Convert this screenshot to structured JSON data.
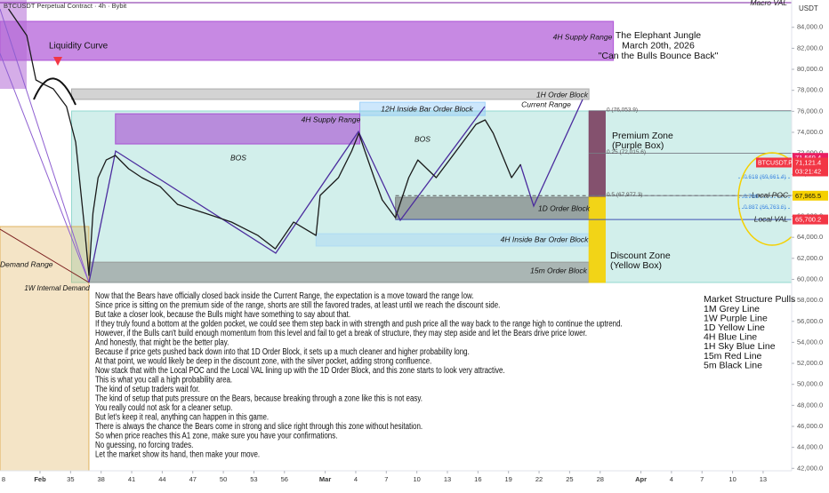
{
  "chart_data": {
    "type": "line",
    "title": "BTCUSDT Perpetual Contract · 4h · Bybit",
    "currency": "USDT",
    "color": "#1a1a1a",
    "x": [
      28.9,
      30.7,
      31.6,
      32.4,
      33.3,
      34.6,
      35.5,
      36.4,
      36.8,
      37.2,
      37.7,
      38.5,
      39.4,
      40.7,
      42.0,
      43.8,
      45.5,
      48.2,
      50.8,
      53.4,
      55.1,
      56.9,
      59.1,
      59.5,
      61.3,
      62.6,
      63.3,
      63.9,
      64.8,
      65.6,
      66.9,
      68.2,
      69.1,
      70.9,
      72.2,
      73.5,
      74.8,
      75.7,
      76.5,
      77.4,
      78.3,
      79.2
    ],
    "values": [
      85750,
      83220,
      78990,
      78560,
      78140,
      76450,
      73060,
      64600,
      60370,
      66300,
      69680,
      71370,
      71800,
      70530,
      69680,
      68830,
      67140,
      66300,
      65450,
      64180,
      62910,
      65450,
      64180,
      67990,
      69680,
      72220,
      73910,
      72220,
      69680,
      67570,
      65870,
      69680,
      71370,
      69680,
      71370,
      73060,
      74760,
      75180,
      73910,
      71800,
      69680,
      70950
    ],
    "xlim": [
      28.07,
      105.8
    ],
    "ylim": [
      41770,
      86600
    ],
    "xticks": [
      {
        "value": 28,
        "label": "8"
      },
      {
        "value": 32,
        "label": "Feb"
      },
      35,
      38,
      41,
      44,
      47,
      50,
      53,
      56,
      {
        "value": 60,
        "label": "Mar"
      },
      {
        "value": 63,
        "label": "4"
      },
      {
        "value": 66,
        "label": "7"
      },
      {
        "value": 69,
        "label": "10"
      },
      {
        "value": 72,
        "label": "13"
      },
      {
        "value": 75,
        "label": "16"
      },
      {
        "value": 78,
        "label": "19"
      },
      {
        "value": 81,
        "label": "22"
      },
      {
        "value": 84,
        "label": "25"
      },
      {
        "value": 87,
        "label": "28"
      },
      {
        "value": 91,
        "label": "Apr"
      },
      {
        "value": 94,
        "label": "4"
      },
      {
        "value": 97,
        "label": "7"
      },
      {
        "value": 100,
        "label": "10"
      },
      {
        "value": 103,
        "label": "13"
      }
    ],
    "yticks": [
      {
        "value": 42000,
        "label": "42,000.0"
      },
      {
        "value": 44000,
        "label": "44,000.0"
      },
      {
        "value": 46000,
        "label": "46,000.0"
      },
      {
        "value": 48000,
        "label": "48,000.0"
      },
      {
        "value": 50000,
        "label": "50,000.0"
      },
      {
        "value": 52000,
        "label": "52,000.0"
      },
      {
        "value": 54000,
        "label": "54,000.0"
      },
      {
        "value": 56000,
        "label": "56,000.0"
      },
      {
        "value": 58000,
        "label": "58,000.0"
      },
      {
        "value": 60000,
        "label": "60,000.0"
      },
      {
        "value": 62000,
        "label": "62,000.0"
      },
      {
        "value": 64000,
        "label": "64,000.0"
      },
      {
        "value": 66000,
        "label": "66,000.0"
      },
      {
        "value": 68000,
        "label": "68,000.0"
      },
      {
        "value": 70000,
        "label": "70,000.0"
      },
      {
        "value": 72000,
        "label": "72,000.0"
      },
      {
        "value": 74000,
        "label": "74,000.0"
      },
      {
        "value": 76000,
        "label": "76,000.0"
      },
      {
        "value": 78000,
        "label": "78,000.0"
      },
      {
        "value": 80000,
        "label": "80,000.0"
      },
      {
        "value": 82000,
        "label": "82,000.0"
      },
      {
        "value": 84000,
        "label": "84,000.0"
      }
    ],
    "zones": [
      {
        "label": "4H Supply Range",
        "x": [
          28.07,
          88.3
        ],
        "y": [
          80850,
          84570
        ],
        "color": "#a23bd0"
      },
      {
        "label": "1H Order Block",
        "x": [
          35.1,
          85.9
        ],
        "y": [
          77130,
          78140
        ],
        "color": "#9e9e9e"
      },
      {
        "label": "Current Range",
        "x": [
          35.1,
          105.8
        ],
        "y": [
          59700,
          76030
        ],
        "color": "#7fd1c7"
      },
      {
        "label": "12H Inside Bar Order Block",
        "x": [
          63.4,
          75.7
        ],
        "y": [
          75600,
          76870
        ],
        "color": "#90caf9"
      },
      {
        "label": "4H Supply Range",
        "x": [
          39.4,
          63.4
        ],
        "y": [
          72890,
          75770
        ],
        "color": "#a23bd0"
      },
      {
        "label": "1D Order Block",
        "x": [
          66.9,
          85.9
        ],
        "y": [
          65700,
          67820
        ],
        "color": "#707070"
      },
      {
        "label": "4H Inside Bar Order Block",
        "x": [
          59.1,
          85.9
        ],
        "y": [
          63170,
          64350
        ],
        "color": "#a9d8f5"
      },
      {
        "label": "15m Order Block",
        "x": [
          36.8,
          85.9
        ],
        "y": [
          59700,
          61640
        ],
        "color": "#8f8f8f"
      },
      {
        "label": "Premium Zone",
        "sublabel": "(Purple Box)",
        "x": [
          85.9,
          87.5
        ],
        "y": [
          67820,
          76030
        ],
        "color": "#7b3f61"
      },
      {
        "label": "Discount Zone",
        "sublabel": "(Yellow Box)",
        "x": [
          85.9,
          87.5
        ],
        "y": [
          59700,
          67820
        ],
        "color": "#f5d000"
      },
      {
        "label": "Demand Range",
        "x": [
          28.07,
          36.8
        ],
        "y": [
          41770,
          65030
        ],
        "color": "#d9a441"
      }
    ],
    "levels": [
      {
        "label": "Macro VAL",
        "value": 86350,
        "color": "#7b1fa2"
      },
      {
        "label": "Local POC",
        "value": 67965.5,
        "color": "#555555"
      },
      {
        "label": "Local VAL",
        "value": 65700.2,
        "color": "#3f51b5"
      }
    ],
    "fib": [
      {
        "label": "0 (76,053.9)",
        "value": 76053.9
      },
      {
        "label": "0.25 (72,015.6)",
        "value": 72015.6
      },
      {
        "label": "0.5 (67,977.3)",
        "value": 67977.3
      },
      {
        "label": "0.618 (69,661.4)",
        "value": 69661.4
      },
      {
        "label": "0.786",
        "value": 67800
      },
      {
        "label": "0.887 (66,763.6)",
        "value": 66763.6
      }
    ],
    "price_labels": [
      {
        "value": 71569.4,
        "label": "71,569.4",
        "color": "#e91e63"
      },
      {
        "value": 71121.4,
        "label": "71,121.4",
        "color": "#f23645"
      },
      {
        "value": 67965.5,
        "label": "67,965.5",
        "color": "#f5d000"
      },
      {
        "value": 65700.2,
        "label": "65,700.2",
        "color": "#f23645"
      }
    ],
    "symbol": "BTCUSDT.P",
    "countdown": "03:21:42",
    "annotations": [
      "Liquidity Curve",
      "BOS",
      "BOS",
      "1W Internal Demand"
    ],
    "header_text": [
      "The Elephant Jungle",
      "March 20th, 2026",
      "\"Can the Bulls Bounce Back\""
    ],
    "commentary": [
      "Now that the Bears have officially closed back inside the Current Range, the expectation is a move toward the range low.",
      "Since price is sitting on the premium side of the range, shorts are still the favored trades, at least until we reach the discount side.",
      "But take a closer look, because the Bulls might have something to say about that.",
      "If they truly found a bottom at the golden pocket, we could see them step back in with strength and push price all the way back to the range high to continue the uptrend.",
      "However, if the Bulls can't build enough momentum from this level and fail to get a break of structure, they may step aside and let the Bears drive price lower.",
      "And honestly, that might be the better play.",
      "Because if price gets pushed back down into that 1D Order Block, it sets up a much cleaner and higher probability long.",
      "At that point, we would likely be deep in the discount zone, with the silver pocket, adding strong confluence.",
      "Now stack that with the Local POC and the Local VAL lining up with the 1D Order Block, and this zone starts to look very attractive.",
      "This is what you call a high probability area.",
      "The kind of setup traders wait for.",
      "The kind of setup that puts pressure on the Bears, because breaking through a zone like this is not easy.",
      "You really could not ask for a cleaner setup.",
      "But let's keep it real, anything can happen in this game.",
      "There is always the chance the Bears come in strong and slice right through this zone without hesitation.",
      "So when price reaches this A1 zone, make sure you have your confirmations.",
      "No guessing, no forcing trades.",
      "Let the market show its hand, then make your move."
    ],
    "legend": {
      "title": "Market Structure Pulls",
      "items": [
        "1M Grey Line",
        "1W Purple Line",
        "1D Yellow Line",
        "4H Blue Line",
        "1H Sky Blue Line",
        "15m Red Line",
        "5m Black Line"
      ]
    }
  }
}
